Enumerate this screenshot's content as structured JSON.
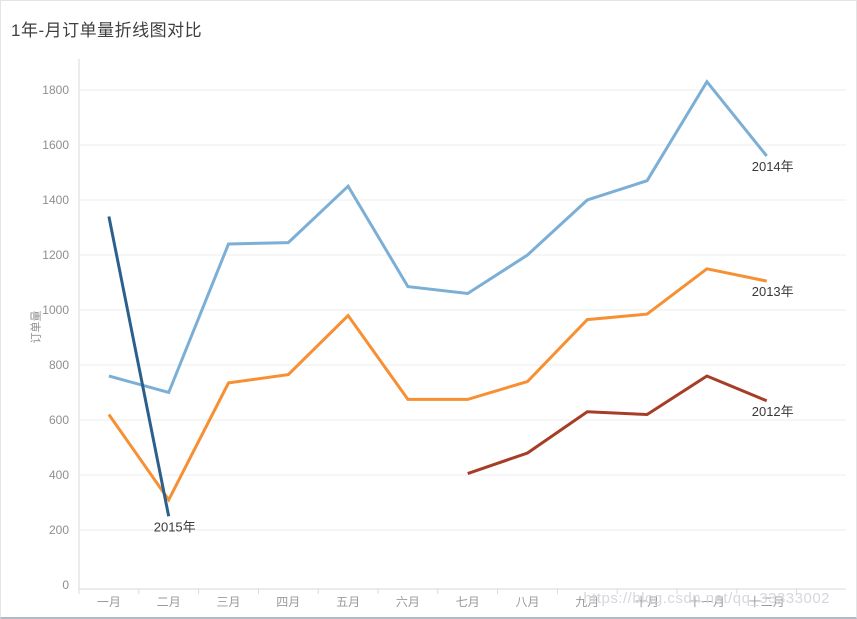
{
  "page": {
    "title": "1年-月订单量折线图对比",
    "watermark": "https://blog.csdn.net/qq_33333002"
  },
  "chart_data": {
    "type": "line",
    "title": "1年-月订单量折线图对比",
    "xlabel": "",
    "ylabel": "订单量",
    "ylim": [
      0,
      1900
    ],
    "yticks": [
      0,
      200,
      400,
      600,
      800,
      1000,
      1200,
      1400,
      1600,
      1800
    ],
    "categories": [
      "一月",
      "二月",
      "三月",
      "四月",
      "五月",
      "六月",
      "七月",
      "八月",
      "九月",
      "十月",
      "十一月",
      "十二月"
    ],
    "grid": true,
    "legend_position": "line-end-labels",
    "series": [
      {
        "name": "2014年",
        "color": "#7cafd6",
        "start_month_index": 0,
        "values": [
          760,
          700,
          1240,
          1245,
          1450,
          1085,
          1060,
          1200,
          1400,
          1470,
          1830,
          1560
        ]
      },
      {
        "name": "2013年",
        "color": "#f78f33",
        "start_month_index": 0,
        "values": [
          620,
          310,
          735,
          765,
          980,
          675,
          675,
          740,
          965,
          985,
          1150,
          1105
        ]
      },
      {
        "name": "2012年",
        "color": "#a63d26",
        "start_month_index": 6,
        "values": [
          405,
          480,
          630,
          620,
          760,
          670
        ]
      },
      {
        "name": "2015年",
        "color": "#2b5f8c",
        "start_month_index": 0,
        "values": [
          1340,
          250
        ]
      }
    ]
  }
}
